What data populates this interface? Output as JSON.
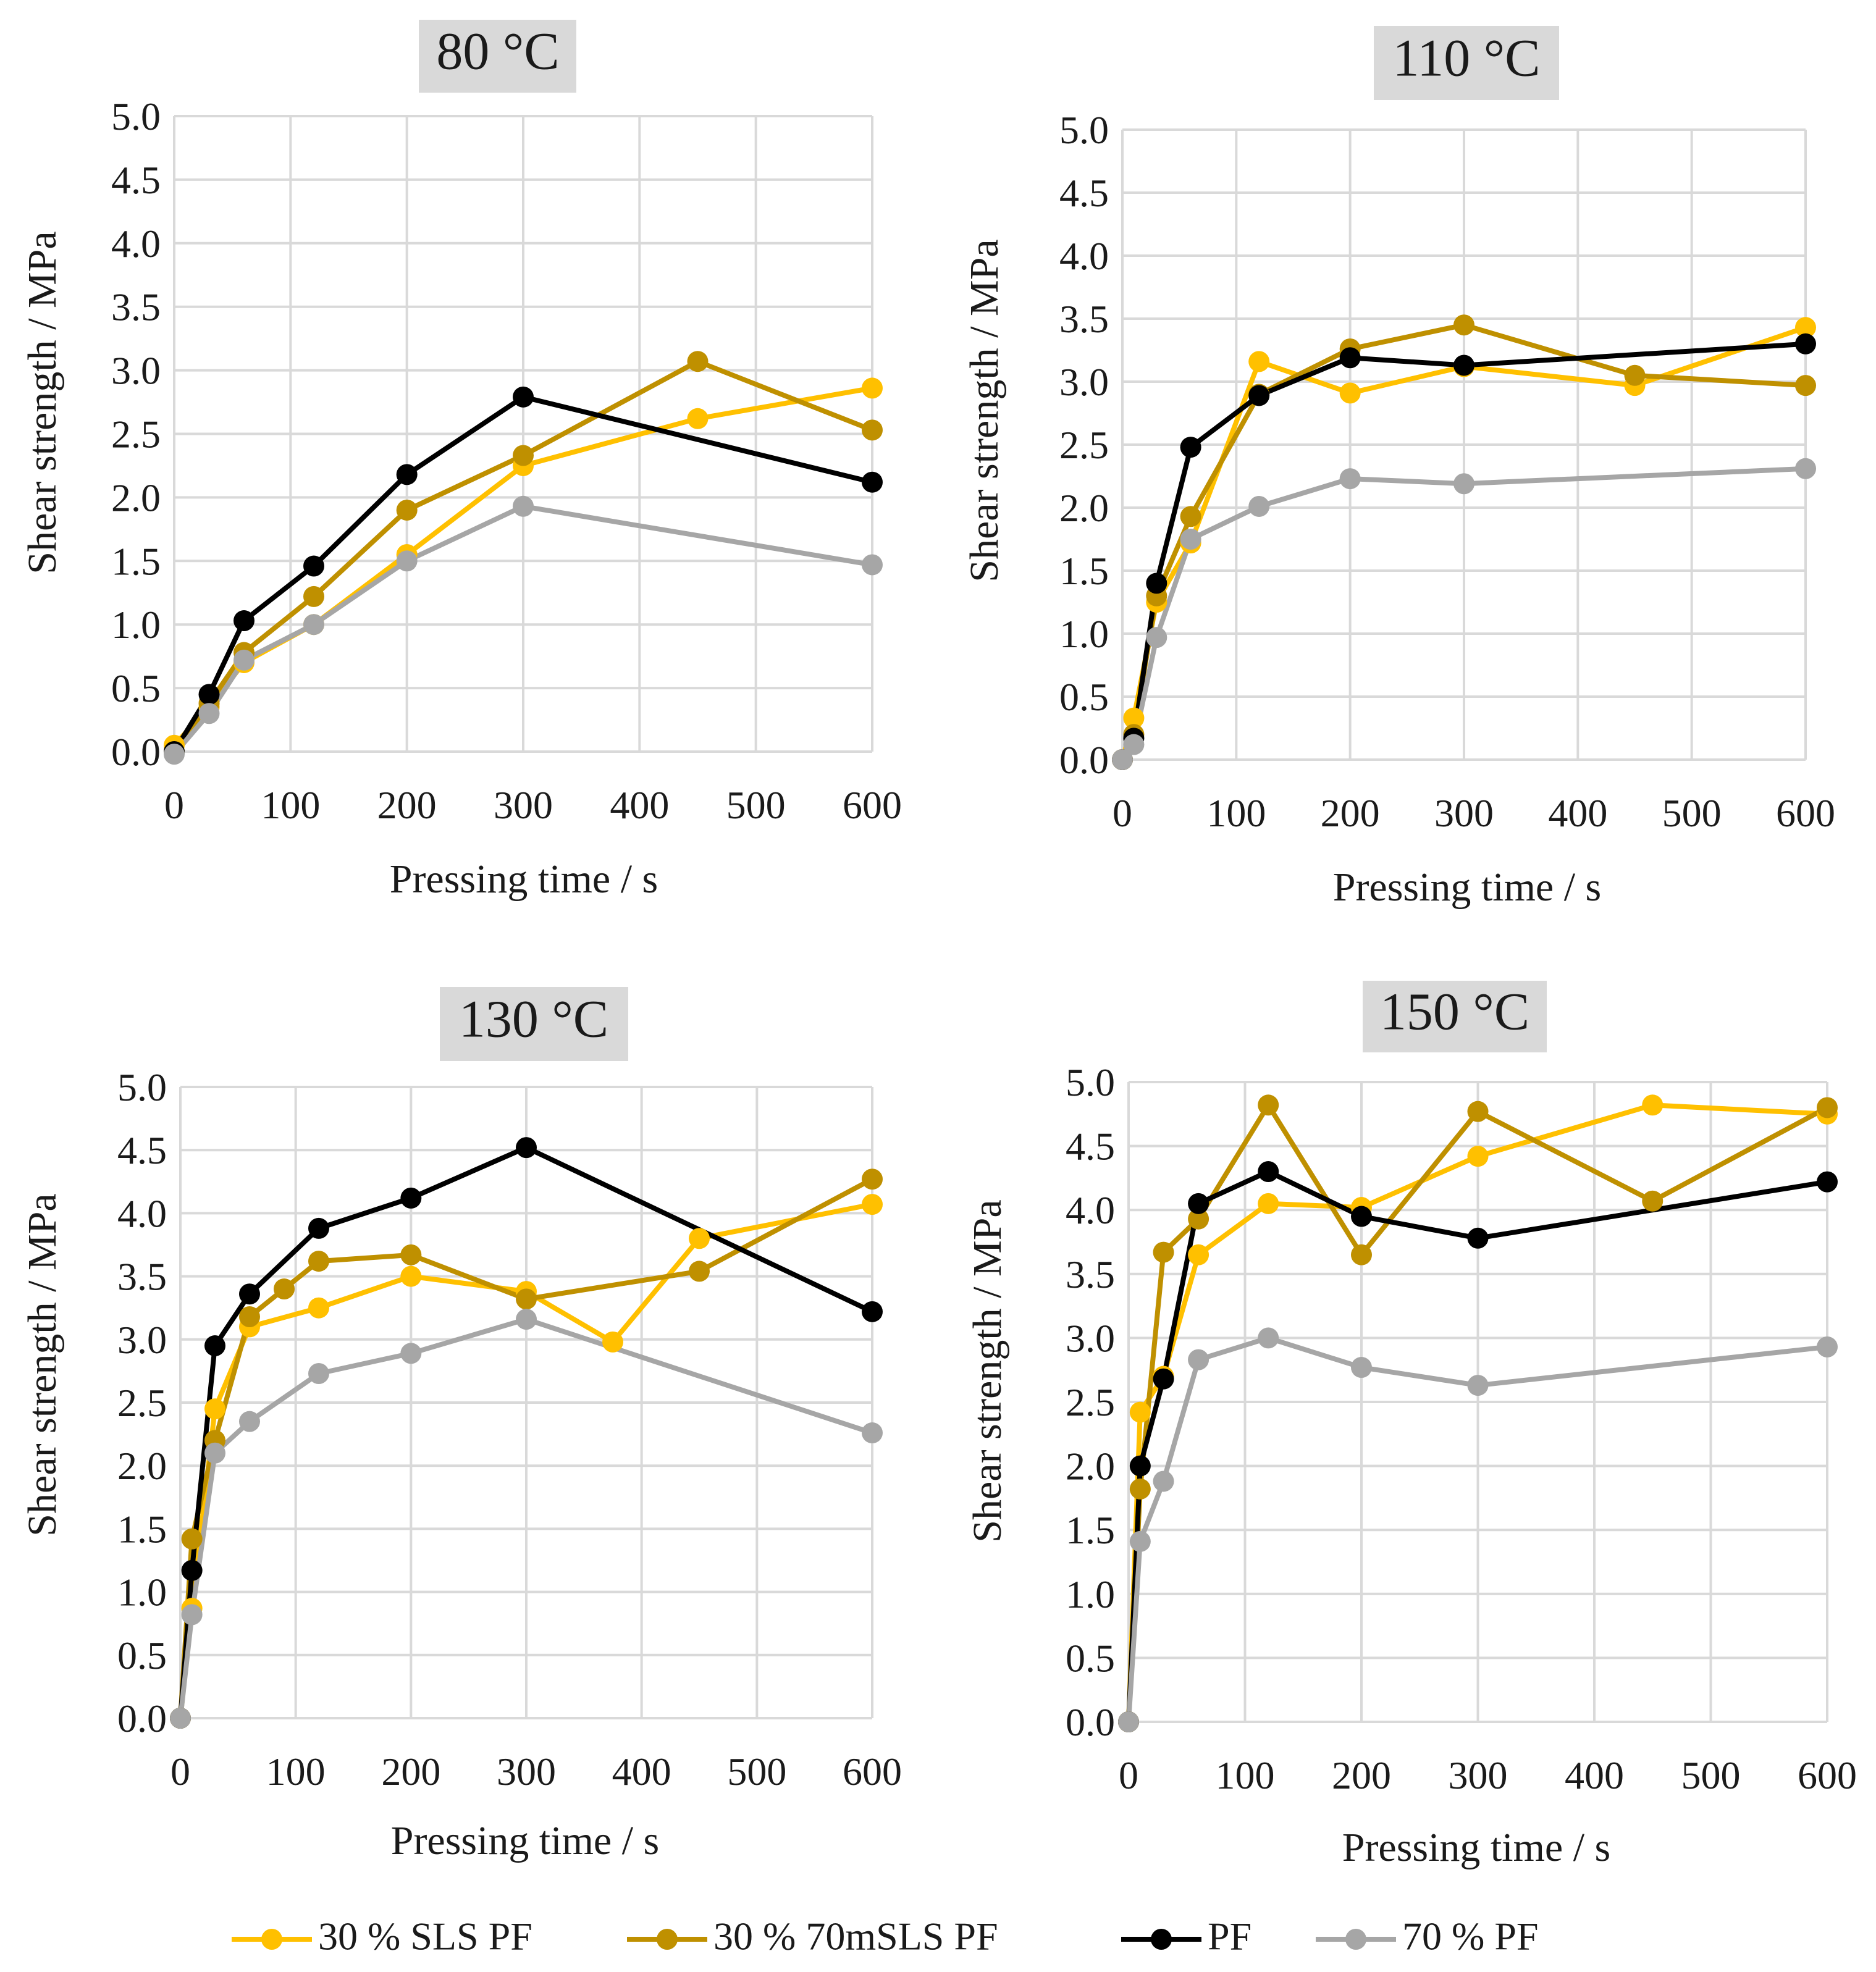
{
  "figure": {
    "legend": [
      {
        "label": "30 % SLS PF",
        "color": "#FFC000"
      },
      {
        "label": "30 % 70mSLS PF",
        "color": "#BF9000"
      },
      {
        "label": "PF",
        "color": "#000000"
      },
      {
        "label": "70 % PF",
        "color": "#A6A6A6"
      }
    ]
  },
  "chart_data": [
    {
      "type": "line",
      "title": "80 °C",
      "xlabel": "Pressing time / s",
      "ylabel": "Shear strength / MPa",
      "xlim": [
        0,
        600
      ],
      "ylim": [
        0,
        5.0
      ],
      "xticks": [
        "0",
        "100",
        "200",
        "300",
        "400",
        "500",
        "600"
      ],
      "yticks": [
        "0.0",
        "0.5",
        "1.0",
        "1.5",
        "2.0",
        "2.5",
        "3.0",
        "3.5",
        "4.0",
        "4.5",
        "5.0"
      ],
      "grid": true,
      "series": [
        {
          "name": "30 % SLS PF",
          "color": "#FFC000",
          "x": [
            0,
            30,
            60,
            120,
            200,
            300,
            450,
            600
          ],
          "y": [
            0.05,
            0.35,
            0.7,
            1.0,
            1.55,
            2.25,
            2.62,
            2.86
          ]
        },
        {
          "name": "30 % 70mSLS PF",
          "color": "#BF9000",
          "x": [
            0,
            30,
            60,
            120,
            200,
            300,
            450,
            600
          ],
          "y": [
            0.0,
            0.38,
            0.78,
            1.22,
            1.9,
            2.33,
            3.07,
            2.53
          ]
        },
        {
          "name": "PF",
          "color": "#000000",
          "x": [
            0,
            30,
            60,
            120,
            200,
            300,
            600
          ],
          "y": [
            0.0,
            0.45,
            1.03,
            1.46,
            2.18,
            2.79,
            2.12
          ]
        },
        {
          "name": "70 % PF",
          "color": "#A6A6A6",
          "x": [
            0,
            30,
            60,
            120,
            200,
            300,
            600
          ],
          "y": [
            -0.02,
            0.3,
            0.72,
            1.0,
            1.5,
            1.93,
            1.47
          ]
        }
      ]
    },
    {
      "type": "line",
      "title": "110 °C",
      "xlabel": "Pressing time / s",
      "ylabel": "Shear strength / MPa",
      "xlim": [
        0,
        600
      ],
      "ylim": [
        0,
        5.0
      ],
      "xticks": [
        "0",
        "100",
        "200",
        "300",
        "400",
        "500",
        "600"
      ],
      "yticks": [
        "0.0",
        "0.5",
        "1.0",
        "1.5",
        "2.0",
        "2.5",
        "3.0",
        "3.5",
        "4.0",
        "4.5",
        "5.0"
      ],
      "grid": true,
      "series": [
        {
          "name": "30 % SLS PF",
          "color": "#FFC000",
          "x": [
            0,
            10,
            30,
            60,
            120,
            200,
            300,
            450,
            600
          ],
          "y": [
            0.0,
            0.33,
            1.25,
            1.72,
            3.16,
            2.91,
            3.12,
            2.97,
            3.43
          ]
        },
        {
          "name": "30 % 70mSLS PF",
          "color": "#BF9000",
          "x": [
            0,
            10,
            30,
            60,
            120,
            200,
            300,
            450,
            600
          ],
          "y": [
            0.0,
            0.2,
            1.3,
            1.93,
            2.9,
            3.26,
            3.45,
            3.05,
            2.97
          ]
        },
        {
          "name": "PF",
          "color": "#000000",
          "x": [
            0,
            10,
            30,
            60,
            120,
            200,
            300,
            600
          ],
          "y": [
            0.0,
            0.17,
            1.4,
            2.48,
            2.89,
            3.19,
            3.13,
            3.3
          ]
        },
        {
          "name": "70 % PF",
          "color": "#A6A6A6",
          "x": [
            0,
            10,
            30,
            60,
            120,
            200,
            300,
            600
          ],
          "y": [
            0.0,
            0.12,
            0.97,
            1.75,
            2.01,
            2.23,
            2.19,
            2.31
          ]
        }
      ]
    },
    {
      "type": "line",
      "title": "130 °C",
      "xlabel": "Pressing time / s",
      "ylabel": "Shear strength / MPa",
      "xlim": [
        0,
        600
      ],
      "ylim": [
        0,
        5.0
      ],
      "xticks": [
        "0",
        "100",
        "200",
        "300",
        "400",
        "500",
        "600"
      ],
      "yticks": [
        "0.0",
        "0.5",
        "1.0",
        "1.5",
        "2.0",
        "2.5",
        "3.0",
        "3.5",
        "4.0",
        "4.5",
        "5.0"
      ],
      "grid": true,
      "series": [
        {
          "name": "30 % SLS PF",
          "color": "#FFC000",
          "x": [
            0,
            10,
            30,
            60,
            120,
            200,
            300,
            375,
            450,
            600
          ],
          "y": [
            0.0,
            0.87,
            2.45,
            3.1,
            3.25,
            3.5,
            3.38,
            2.98,
            3.8,
            4.07
          ]
        },
        {
          "name": "30 % 70mSLS PF",
          "color": "#BF9000",
          "x": [
            0,
            10,
            30,
            60,
            90,
            120,
            200,
            300,
            450,
            600
          ],
          "y": [
            0.0,
            1.42,
            2.2,
            3.18,
            3.4,
            3.62,
            3.67,
            3.32,
            3.54,
            4.27
          ]
        },
        {
          "name": "PF",
          "color": "#000000",
          "x": [
            0,
            10,
            30,
            60,
            120,
            200,
            300,
            600
          ],
          "y": [
            0.0,
            1.17,
            2.95,
            3.36,
            3.88,
            4.12,
            4.52,
            3.22
          ]
        },
        {
          "name": "70 % PF",
          "color": "#A6A6A6",
          "x": [
            0,
            10,
            30,
            60,
            120,
            200,
            300,
            600
          ],
          "y": [
            0.0,
            0.82,
            2.1,
            2.35,
            2.73,
            2.89,
            3.16,
            2.26
          ]
        }
      ]
    },
    {
      "type": "line",
      "title": "150 °C",
      "xlabel": "Pressing time / s",
      "ylabel": "Shear strength / MPa",
      "xlim": [
        0,
        600
      ],
      "ylim": [
        0,
        5.0
      ],
      "xticks": [
        "0",
        "100",
        "200",
        "300",
        "400",
        "500",
        "600"
      ],
      "yticks": [
        "0.0",
        "0.5",
        "1.0",
        "1.5",
        "2.0",
        "2.5",
        "3.0",
        "3.5",
        "4.0",
        "4.5",
        "5.0"
      ],
      "grid": true,
      "series": [
        {
          "name": "30 % SLS PF",
          "color": "#FFC000",
          "x": [
            0,
            10,
            30,
            60,
            120,
            200,
            300,
            450,
            600
          ],
          "y": [
            0.0,
            2.42,
            2.7,
            3.65,
            4.05,
            4.02,
            4.42,
            4.82,
            4.75
          ]
        },
        {
          "name": "30 % 70mSLS PF",
          "color": "#BF9000",
          "x": [
            0,
            10,
            30,
            60,
            120,
            200,
            300,
            450,
            600
          ],
          "y": [
            0.0,
            1.82,
            3.67,
            3.93,
            4.82,
            3.65,
            4.77,
            4.07,
            4.8
          ]
        },
        {
          "name": "PF",
          "color": "#000000",
          "x": [
            0,
            10,
            30,
            60,
            120,
            200,
            300,
            600
          ],
          "y": [
            0.0,
            2.0,
            2.68,
            4.05,
            4.3,
            3.95,
            3.78,
            4.22
          ]
        },
        {
          "name": "70 % PF",
          "color": "#A6A6A6",
          "x": [
            0,
            10,
            30,
            60,
            120,
            200,
            300,
            600
          ],
          "y": [
            0.0,
            1.41,
            1.88,
            2.83,
            3.0,
            2.77,
            2.63,
            2.93
          ]
        }
      ]
    }
  ]
}
